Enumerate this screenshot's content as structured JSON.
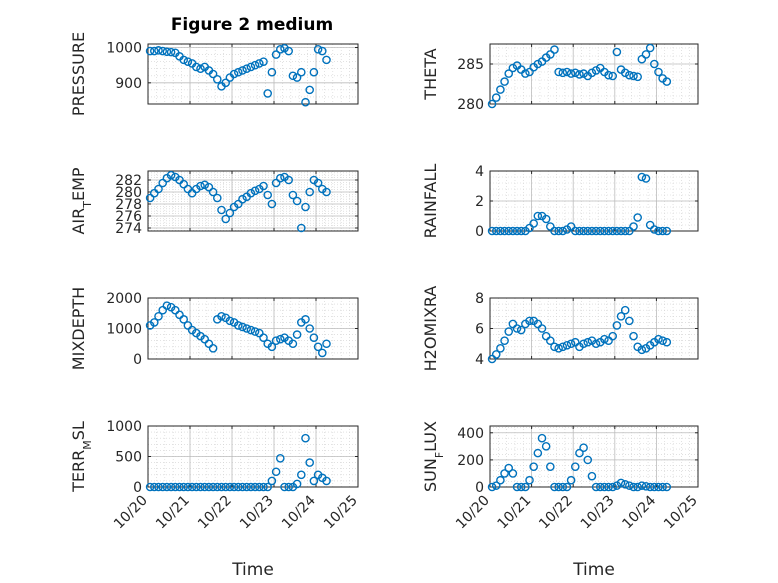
{
  "figure_title": "Figure 2 medium",
  "marker_color": "#0072BD",
  "chart_data": [
    {
      "type": "scatter",
      "ylabel": "PRESSURE",
      "xlabel": "",
      "ylim": [
        840,
        1010
      ],
      "yticks": [
        900,
        1000
      ],
      "xlim": [
        0,
        5
      ],
      "x": [
        0.05,
        0.15,
        0.25,
        0.35,
        0.45,
        0.55,
        0.65,
        0.75,
        0.85,
        0.95,
        1.05,
        1.15,
        1.25,
        1.35,
        1.45,
        1.55,
        1.65,
        1.75,
        1.85,
        1.95,
        2.05,
        2.15,
        2.25,
        2.35,
        2.45,
        2.55,
        2.65,
        2.75,
        2.85,
        2.95,
        3.05,
        3.15,
        3.25,
        3.35,
        3.45,
        3.55,
        3.65,
        3.75,
        3.85,
        3.95,
        4.05,
        4.15,
        4.25
      ],
      "y": [
        990,
        990,
        992,
        990,
        988,
        987,
        985,
        975,
        965,
        960,
        955,
        945,
        940,
        945,
        935,
        925,
        910,
        890,
        900,
        915,
        925,
        930,
        935,
        940,
        945,
        950,
        955,
        960,
        870,
        930,
        980,
        995,
        998,
        990,
        920,
        915,
        930,
        845,
        880,
        930,
        995,
        990,
        965
      ]
    },
    {
      "type": "scatter",
      "ylabel": "THETA",
      "xlabel": "",
      "ylim": [
        280,
        287.5
      ],
      "yticks": [
        280,
        285
      ],
      "xlim": [
        0,
        5
      ],
      "x": [
        0.05,
        0.15,
        0.25,
        0.35,
        0.45,
        0.55,
        0.65,
        0.75,
        0.85,
        0.95,
        1.05,
        1.15,
        1.25,
        1.35,
        1.45,
        1.55,
        1.65,
        1.75,
        1.85,
        1.95,
        2.05,
        2.15,
        2.25,
        2.35,
        2.45,
        2.55,
        2.65,
        2.75,
        2.85,
        2.95,
        3.05,
        3.15,
        3.25,
        3.35,
        3.45,
        3.55,
        3.65,
        3.75,
        3.85,
        3.95,
        4.05,
        4.15,
        4.25
      ],
      "y": [
        280.0,
        280.8,
        281.8,
        282.8,
        283.8,
        284.5,
        284.8,
        284.3,
        283.8,
        284.0,
        284.6,
        285.0,
        285.3,
        285.8,
        286.2,
        286.8,
        284.0,
        283.9,
        284.0,
        283.8,
        283.9,
        283.7,
        283.8,
        283.5,
        283.9,
        284.2,
        284.5,
        284.0,
        283.6,
        283.5,
        286.5,
        284.3,
        283.9,
        283.6,
        283.5,
        283.4,
        285.6,
        286.2,
        287.0,
        285.0,
        284.0,
        283.2,
        282.8
      ]
    },
    {
      "type": "scatter",
      "ylabel": "AIR_TEMP",
      "xlabel": "",
      "ylim": [
        273.5,
        283.5
      ],
      "yticks": [
        274,
        276,
        278,
        280,
        282
      ],
      "xlim": [
        0,
        5
      ],
      "x": [
        0.05,
        0.15,
        0.25,
        0.35,
        0.45,
        0.55,
        0.65,
        0.75,
        0.85,
        0.95,
        1.05,
        1.15,
        1.25,
        1.35,
        1.45,
        1.55,
        1.65,
        1.75,
        1.85,
        1.95,
        2.05,
        2.15,
        2.25,
        2.35,
        2.45,
        2.55,
        2.65,
        2.75,
        2.85,
        2.95,
        3.05,
        3.15,
        3.25,
        3.35,
        3.45,
        3.55,
        3.65,
        3.75,
        3.85,
        3.95,
        4.05,
        4.15,
        4.25
      ],
      "y": [
        279.0,
        279.8,
        280.5,
        281.5,
        282.3,
        282.8,
        282.5,
        282.0,
        281.3,
        280.5,
        279.8,
        280.5,
        281.0,
        281.2,
        280.8,
        280.0,
        279.0,
        277.0,
        275.5,
        276.5,
        277.5,
        278.0,
        278.8,
        279.2,
        279.8,
        280.2,
        280.5,
        281.0,
        279.5,
        278.0,
        281.5,
        282.3,
        282.5,
        282.0,
        279.5,
        278.5,
        274.0,
        277.5,
        280.0,
        282.0,
        281.5,
        280.5,
        280.0
      ]
    },
    {
      "type": "scatter",
      "ylabel": "RAINFALL",
      "xlabel": "",
      "ylim": [
        0,
        4
      ],
      "yticks": [
        0,
        2,
        4
      ],
      "xlim": [
        0,
        5
      ],
      "x": [
        0.05,
        0.15,
        0.25,
        0.35,
        0.45,
        0.55,
        0.65,
        0.75,
        0.85,
        0.95,
        1.05,
        1.15,
        1.25,
        1.35,
        1.45,
        1.55,
        1.65,
        1.75,
        1.85,
        1.95,
        2.05,
        2.15,
        2.25,
        2.35,
        2.45,
        2.55,
        2.65,
        2.75,
        2.85,
        2.95,
        3.05,
        3.15,
        3.25,
        3.35,
        3.45,
        3.55,
        3.65,
        3.75,
        3.85,
        3.95,
        4.05,
        4.15,
        4.25
      ],
      "y": [
        0,
        0,
        0,
        0,
        0,
        0,
        0,
        0,
        0,
        0.2,
        0.5,
        1.0,
        1.0,
        0.8,
        0.3,
        0,
        0,
        0,
        0.1,
        0.3,
        0,
        0,
        0,
        0,
        0,
        0,
        0,
        0,
        0,
        0,
        0,
        0,
        0,
        0,
        0.3,
        0.9,
        3.6,
        3.5,
        0.4,
        0.1,
        0,
        0,
        0
      ]
    },
    {
      "type": "scatter",
      "ylabel": "MIXDEPTH",
      "xlabel": "",
      "ylim": [
        0,
        2000
      ],
      "yticks": [
        0,
        1000,
        2000
      ],
      "xlim": [
        0,
        5
      ],
      "x": [
        0.05,
        0.15,
        0.25,
        0.35,
        0.45,
        0.55,
        0.65,
        0.75,
        0.85,
        0.95,
        1.05,
        1.15,
        1.25,
        1.35,
        1.45,
        1.55,
        1.65,
        1.75,
        1.85,
        1.95,
        2.05,
        2.15,
        2.25,
        2.35,
        2.45,
        2.55,
        2.65,
        2.75,
        2.85,
        2.95,
        3.05,
        3.15,
        3.25,
        3.35,
        3.45,
        3.55,
        3.65,
        3.75,
        3.85,
        3.95,
        4.05,
        4.15,
        4.25
      ],
      "y": [
        1100,
        1200,
        1400,
        1600,
        1750,
        1700,
        1600,
        1450,
        1300,
        1100,
        950,
        850,
        750,
        650,
        500,
        350,
        1300,
        1400,
        1350,
        1250,
        1200,
        1100,
        1050,
        1000,
        950,
        900,
        850,
        700,
        500,
        400,
        600,
        650,
        700,
        600,
        500,
        800,
        1200,
        1300,
        1000,
        700,
        400,
        200,
        500
      ]
    },
    {
      "type": "scatter",
      "ylabel": "H2OMIXRA",
      "xlabel": "",
      "ylim": [
        4,
        8
      ],
      "yticks": [
        4,
        6,
        8
      ],
      "xlim": [
        0,
        5
      ],
      "x": [
        0.05,
        0.15,
        0.25,
        0.35,
        0.45,
        0.55,
        0.65,
        0.75,
        0.85,
        0.95,
        1.05,
        1.15,
        1.25,
        1.35,
        1.45,
        1.55,
        1.65,
        1.75,
        1.85,
        1.95,
        2.05,
        2.15,
        2.25,
        2.35,
        2.45,
        2.55,
        2.65,
        2.75,
        2.85,
        2.95,
        3.05,
        3.15,
        3.25,
        3.35,
        3.45,
        3.55,
        3.65,
        3.75,
        3.85,
        3.95,
        4.05,
        4.15,
        4.25
      ],
      "y": [
        4.0,
        4.3,
        4.7,
        5.2,
        5.8,
        6.3,
        6.0,
        5.9,
        6.3,
        6.5,
        6.5,
        6.3,
        6.0,
        5.5,
        5.2,
        4.8,
        4.7,
        4.8,
        4.9,
        5.0,
        5.1,
        4.8,
        5.0,
        5.1,
        5.2,
        5.0,
        5.1,
        5.3,
        5.2,
        5.5,
        6.2,
        6.8,
        7.2,
        6.5,
        5.5,
        4.8,
        4.6,
        4.7,
        4.9,
        5.1,
        5.3,
        5.2,
        5.1
      ]
    },
    {
      "type": "scatter",
      "ylabel": "TERR_MSL",
      "xlabel": "Time",
      "ylim": [
        0,
        1000
      ],
      "yticks": [
        0,
        500,
        1000
      ],
      "xlim": [
        0,
        5
      ],
      "xticks": [
        "10/20",
        "10/21",
        "10/22",
        "10/23",
        "10/24",
        "10/25"
      ],
      "x": [
        0.05,
        0.15,
        0.25,
        0.35,
        0.45,
        0.55,
        0.65,
        0.75,
        0.85,
        0.95,
        1.05,
        1.15,
        1.25,
        1.35,
        1.45,
        1.55,
        1.65,
        1.75,
        1.85,
        1.95,
        2.05,
        2.15,
        2.25,
        2.35,
        2.45,
        2.55,
        2.65,
        2.75,
        2.85,
        2.95,
        3.05,
        3.15,
        3.25,
        3.35,
        3.45,
        3.55,
        3.65,
        3.75,
        3.85,
        3.95,
        4.05,
        4.15,
        4.25
      ],
      "y": [
        0,
        0,
        0,
        0,
        0,
        0,
        0,
        0,
        0,
        0,
        0,
        0,
        0,
        0,
        0,
        0,
        0,
        0,
        0,
        0,
        0,
        0,
        0,
        0,
        0,
        0,
        0,
        0,
        0,
        100,
        250,
        470,
        0,
        0,
        0,
        50,
        200,
        800,
        400,
        100,
        200,
        150,
        100
      ]
    },
    {
      "type": "scatter",
      "ylabel": "SUN_FLUX",
      "xlabel": "Time",
      "ylim": [
        0,
        450
      ],
      "yticks": [
        0,
        200,
        400
      ],
      "xlim": [
        0,
        5
      ],
      "xticks": [
        "10/20",
        "10/21",
        "10/22",
        "10/23",
        "10/24",
        "10/25"
      ],
      "x": [
        0.05,
        0.15,
        0.25,
        0.35,
        0.45,
        0.55,
        0.65,
        0.75,
        0.85,
        0.95,
        1.05,
        1.15,
        1.25,
        1.35,
        1.45,
        1.55,
        1.65,
        1.75,
        1.85,
        1.95,
        2.05,
        2.15,
        2.25,
        2.35,
        2.45,
        2.55,
        2.65,
        2.75,
        2.85,
        2.95,
        3.05,
        3.15,
        3.25,
        3.35,
        3.45,
        3.55,
        3.65,
        3.75,
        3.85,
        3.95,
        4.05,
        4.15,
        4.25
      ],
      "y": [
        0,
        10,
        50,
        100,
        140,
        100,
        0,
        0,
        0,
        50,
        150,
        250,
        360,
        300,
        150,
        0,
        0,
        0,
        0,
        50,
        150,
        250,
        290,
        200,
        80,
        0,
        0,
        0,
        0,
        0,
        10,
        30,
        20,
        10,
        0,
        0,
        10,
        5,
        0,
        0,
        0,
        0,
        0
      ]
    }
  ]
}
